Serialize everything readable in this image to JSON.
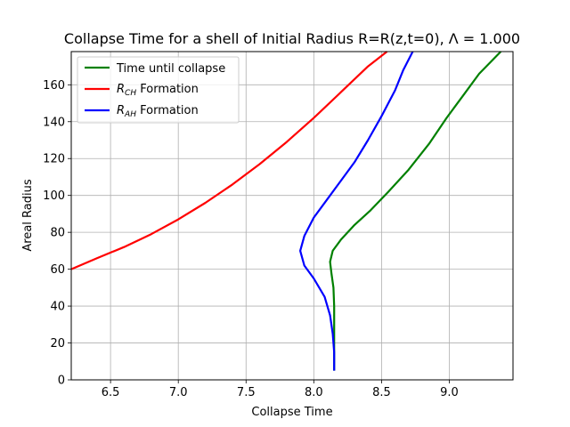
{
  "chart_data": {
    "type": "line",
    "title": "Collapse Time for a shell of Initial Radius R=R(z,t=0), Λ = 1.000",
    "xlabel": "Collapse Time",
    "ylabel": "Areal Radius",
    "xlim": [
      6.21,
      9.47
    ],
    "ylim": [
      0,
      178
    ],
    "xticks": [
      6.5,
      7.0,
      7.5,
      8.0,
      8.5,
      9.0
    ],
    "xtick_labels": [
      "6.5",
      "7.0",
      "7.5",
      "8.0",
      "8.5",
      "9.0"
    ],
    "yticks": [
      0,
      20,
      40,
      60,
      80,
      100,
      120,
      140,
      160
    ],
    "ytick_labels": [
      "0",
      "20",
      "40",
      "60",
      "80",
      "100",
      "120",
      "140",
      "160"
    ],
    "grid": true,
    "legend_position": "top-left",
    "series": [
      {
        "name": "Time until collapse",
        "color": "#008000",
        "points": [
          [
            8.15,
            5
          ],
          [
            8.15,
            20
          ],
          [
            8.15,
            40
          ],
          [
            8.145,
            50
          ],
          [
            8.13,
            58
          ],
          [
            8.12,
            64
          ],
          [
            8.14,
            70
          ],
          [
            8.2,
            76
          ],
          [
            8.3,
            84
          ],
          [
            8.42,
            92
          ],
          [
            8.55,
            102
          ],
          [
            8.7,
            114
          ],
          [
            8.85,
            128
          ],
          [
            8.98,
            142
          ],
          [
            9.1,
            154
          ],
          [
            9.22,
            166
          ],
          [
            9.38,
            178
          ]
        ]
      },
      {
        "name": "R_CH Formation",
        "color": "#ff0000",
        "points": [
          [
            6.21,
            60
          ],
          [
            6.4,
            66
          ],
          [
            6.6,
            72
          ],
          [
            6.8,
            79
          ],
          [
            7.0,
            87
          ],
          [
            7.2,
            96
          ],
          [
            7.4,
            106
          ],
          [
            7.6,
            117
          ],
          [
            7.8,
            129
          ],
          [
            8.0,
            142
          ],
          [
            8.2,
            156
          ],
          [
            8.4,
            170
          ],
          [
            8.54,
            178
          ]
        ]
      },
      {
        "name": "R_AH Formation",
        "color": "#0000ff",
        "points": [
          [
            8.15,
            5
          ],
          [
            8.15,
            15
          ],
          [
            8.14,
            25
          ],
          [
            8.12,
            35
          ],
          [
            8.08,
            45
          ],
          [
            8.0,
            55
          ],
          [
            7.93,
            62
          ],
          [
            7.9,
            70
          ],
          [
            7.93,
            78
          ],
          [
            8.0,
            88
          ],
          [
            8.1,
            98
          ],
          [
            8.2,
            108
          ],
          [
            8.3,
            118
          ],
          [
            8.4,
            130
          ],
          [
            8.5,
            143
          ],
          [
            8.6,
            157
          ],
          [
            8.66,
            168
          ],
          [
            8.73,
            178
          ]
        ]
      }
    ]
  }
}
